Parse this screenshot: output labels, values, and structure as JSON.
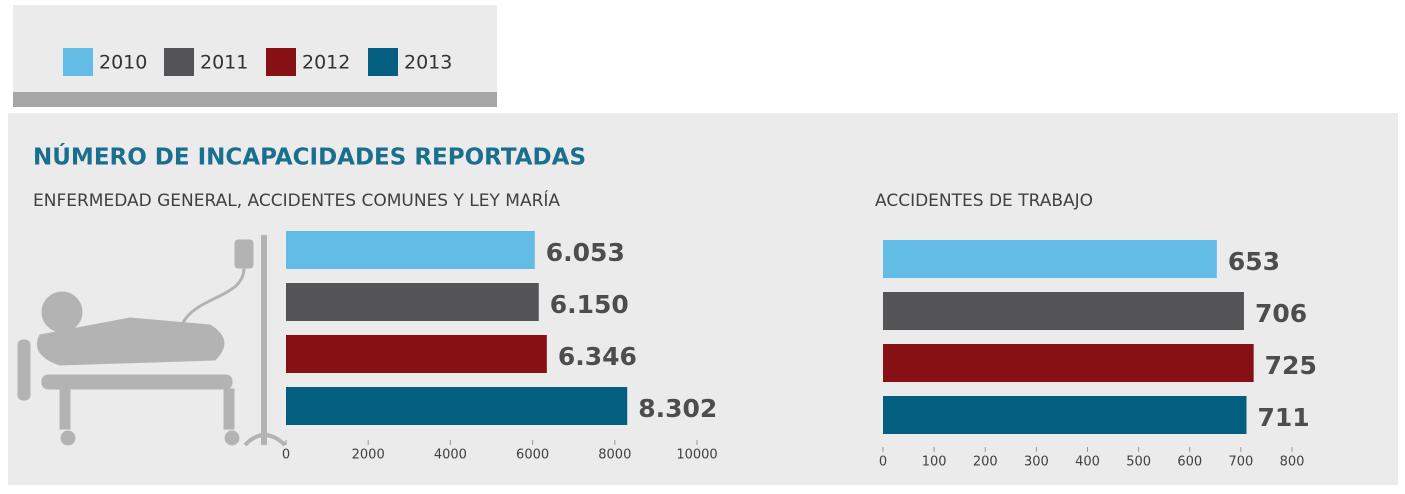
{
  "legend": {
    "labels": [
      "2010",
      "2011",
      "2012",
      "2013"
    ],
    "colors": [
      "#63bce5",
      "#545456",
      "#861014",
      "#035e80"
    ]
  },
  "title": "NÚMERO DE INCAPACIDADES  REPORTADAS",
  "chart_data": [
    {
      "type": "bar",
      "orientation": "horizontal",
      "subtitle": "ENFERMEDAD GENERAL, ACCIDENTES COMUNES Y LEY MARÍA",
      "values": [
        6053,
        6150,
        6346,
        8302
      ],
      "value_labels": [
        "6.053",
        "6.150",
        "6.346",
        "8.302"
      ],
      "xlim": [
        0,
        10000
      ],
      "xticks": [
        0,
        2000,
        4000,
        6000,
        8000,
        10000
      ]
    },
    {
      "type": "bar",
      "orientation": "horizontal",
      "subtitle": "ACCIDENTES DE TRABAJO",
      "values": [
        653,
        706,
        725,
        711
      ],
      "xlim": [
        0,
        800
      ],
      "xticks": [
        0,
        100,
        200,
        300,
        400,
        500,
        600,
        700,
        800
      ]
    }
  ]
}
